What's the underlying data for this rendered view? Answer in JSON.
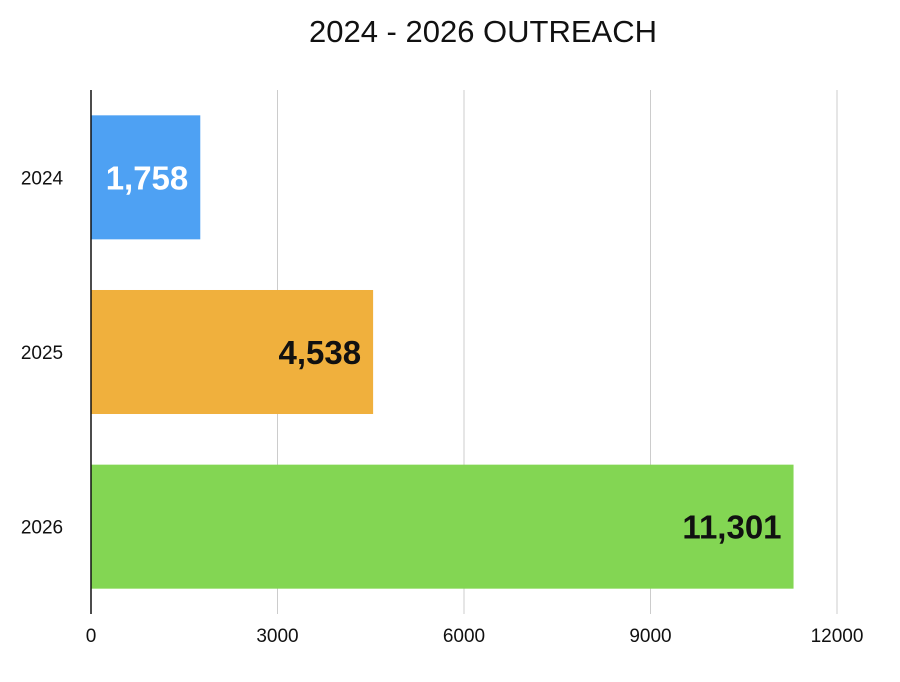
{
  "chart_data": {
    "type": "bar",
    "orientation": "horizontal",
    "title": "2024 - 2026 OUTREACH",
    "categories": [
      "2024",
      "2025",
      "2026"
    ],
    "values": [
      1758,
      4538,
      11301
    ],
    "data_labels": [
      "1,758",
      "4,538",
      "11,301"
    ],
    "bar_colors": [
      "#4ea1f3",
      "#f0b03d",
      "#83d653"
    ],
    "label_colors": [
      "#ffffff",
      "#111111",
      "#111111"
    ],
    "xlim": [
      0,
      12000
    ],
    "x_ticks": [
      0,
      3000,
      6000,
      9000,
      12000
    ],
    "x_tick_labels": [
      "0",
      "3000",
      "6000",
      "9000",
      "12000"
    ],
    "xlabel": "",
    "ylabel": "",
    "grid": "vertical",
    "legend": "none"
  }
}
